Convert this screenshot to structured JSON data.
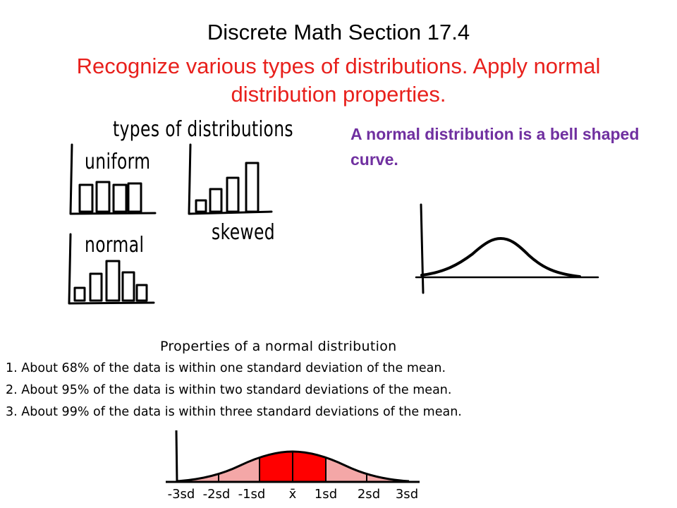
{
  "slide": {
    "title": "Discrete Math  Section 17.4",
    "subtitle": "Recognize various types of distributions.  Apply normal distribution  properties."
  },
  "sketch": {
    "heading": "types of distributions",
    "uniform_label": "uniform",
    "skewed_label": "skewed",
    "normal_label": "normal"
  },
  "normal_note": "A normal distribution is a bell shaped curve.",
  "properties": {
    "heading": "Properties of a normal distribution",
    "items": [
      "1.  About 68% of the data is within one standard deviation of the mean.",
      "2.  About 95% of the data is within two standard deviations of the mean.",
      "3.  About 99% of the data is within three standard deviations of the mean."
    ]
  },
  "sd_axis": {
    "labels": [
      "-3sd",
      "-2sd",
      "-1sd",
      "x̄",
      "1sd",
      "2sd",
      "3sd"
    ]
  },
  "colors": {
    "subtitle": "#e8201c",
    "note": "#7030a0",
    "curve_fill_outer": "#f4a7a7",
    "curve_fill_inner": "#ff0000"
  }
}
